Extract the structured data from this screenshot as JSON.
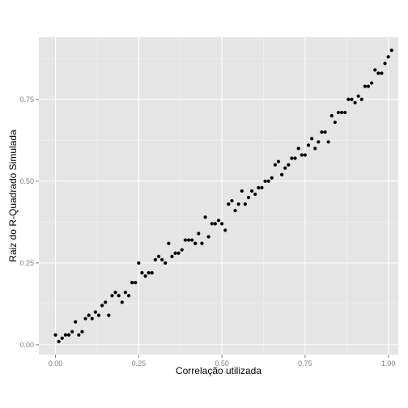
{
  "chart_data": {
    "type": "scatter",
    "xlabel": "Correlação utilizada",
    "ylabel": "Raiz do R-Quadrado Simulada",
    "xlim": [
      -0.05,
      1.03
    ],
    "ylim": [
      -0.03,
      0.94
    ],
    "x_ticks": [
      0.0,
      0.25,
      0.5,
      0.75,
      1.0
    ],
    "x_tick_labels": [
      "0.00",
      "0.25",
      "0.50",
      "0.75",
      "1.00"
    ],
    "y_ticks": [
      0.0,
      0.25,
      0.5,
      0.75
    ],
    "y_tick_labels": [
      "0.00",
      "0.25",
      "0.50",
      "0.75"
    ],
    "grid": true,
    "colors": {
      "panel_bg": "#e5e5e5",
      "grid_major": "#ffffff",
      "grid_minor": "#f2f2f2",
      "point": "#000000",
      "tick": "#7f7f7f"
    },
    "points": [
      [
        0.0,
        0.03
      ],
      [
        0.01,
        0.01
      ],
      [
        0.02,
        0.02
      ],
      [
        0.03,
        0.03
      ],
      [
        0.04,
        0.03
      ],
      [
        0.05,
        0.04
      ],
      [
        0.06,
        0.07
      ],
      [
        0.07,
        0.03
      ],
      [
        0.08,
        0.04
      ],
      [
        0.09,
        0.08
      ],
      [
        0.1,
        0.09
      ],
      [
        0.11,
        0.08
      ],
      [
        0.12,
        0.1
      ],
      [
        0.13,
        0.09
      ],
      [
        0.14,
        0.12
      ],
      [
        0.15,
        0.13
      ],
      [
        0.16,
        0.09
      ],
      [
        0.17,
        0.15
      ],
      [
        0.18,
        0.16
      ],
      [
        0.19,
        0.15
      ],
      [
        0.2,
        0.13
      ],
      [
        0.21,
        0.16
      ],
      [
        0.22,
        0.15
      ],
      [
        0.23,
        0.19
      ],
      [
        0.24,
        0.19
      ],
      [
        0.25,
        0.25
      ],
      [
        0.26,
        0.22
      ],
      [
        0.27,
        0.21
      ],
      [
        0.28,
        0.22
      ],
      [
        0.29,
        0.22
      ],
      [
        0.3,
        0.26
      ],
      [
        0.31,
        0.27
      ],
      [
        0.32,
        0.26
      ],
      [
        0.33,
        0.25
      ],
      [
        0.34,
        0.31
      ],
      [
        0.35,
        0.27
      ],
      [
        0.36,
        0.28
      ],
      [
        0.37,
        0.28
      ],
      [
        0.38,
        0.29
      ],
      [
        0.39,
        0.32
      ],
      [
        0.4,
        0.32
      ],
      [
        0.41,
        0.32
      ],
      [
        0.42,
        0.31
      ],
      [
        0.43,
        0.34
      ],
      [
        0.44,
        0.31
      ],
      [
        0.45,
        0.39
      ],
      [
        0.46,
        0.33
      ],
      [
        0.47,
        0.37
      ],
      [
        0.48,
        0.37
      ],
      [
        0.49,
        0.38
      ],
      [
        0.5,
        0.37
      ],
      [
        0.51,
        0.35
      ],
      [
        0.52,
        0.43
      ],
      [
        0.53,
        0.44
      ],
      [
        0.54,
        0.41
      ],
      [
        0.55,
        0.43
      ],
      [
        0.56,
        0.47
      ],
      [
        0.57,
        0.43
      ],
      [
        0.58,
        0.45
      ],
      [
        0.59,
        0.47
      ],
      [
        0.6,
        0.46
      ],
      [
        0.61,
        0.48
      ],
      [
        0.62,
        0.48
      ],
      [
        0.63,
        0.5
      ],
      [
        0.64,
        0.5
      ],
      [
        0.65,
        0.51
      ],
      [
        0.66,
        0.55
      ],
      [
        0.67,
        0.56
      ],
      [
        0.68,
        0.52
      ],
      [
        0.69,
        0.54
      ],
      [
        0.7,
        0.55
      ],
      [
        0.71,
        0.57
      ],
      [
        0.72,
        0.57
      ],
      [
        0.73,
        0.6
      ],
      [
        0.74,
        0.58
      ],
      [
        0.75,
        0.58
      ],
      [
        0.76,
        0.61
      ],
      [
        0.77,
        0.63
      ],
      [
        0.78,
        0.6
      ],
      [
        0.79,
        0.62
      ],
      [
        0.8,
        0.65
      ],
      [
        0.81,
        0.65
      ],
      [
        0.82,
        0.62
      ],
      [
        0.83,
        0.7
      ],
      [
        0.84,
        0.68
      ],
      [
        0.85,
        0.71
      ],
      [
        0.86,
        0.71
      ],
      [
        0.87,
        0.71
      ],
      [
        0.88,
        0.75
      ],
      [
        0.89,
        0.75
      ],
      [
        0.9,
        0.74
      ],
      [
        0.91,
        0.76
      ],
      [
        0.92,
        0.75
      ],
      [
        0.93,
        0.79
      ],
      [
        0.94,
        0.79
      ],
      [
        0.95,
        0.8
      ],
      [
        0.96,
        0.84
      ],
      [
        0.97,
        0.83
      ],
      [
        0.98,
        0.83
      ],
      [
        0.99,
        0.86
      ],
      [
        1.0,
        0.88
      ],
      [
        1.01,
        0.9
      ]
    ]
  }
}
